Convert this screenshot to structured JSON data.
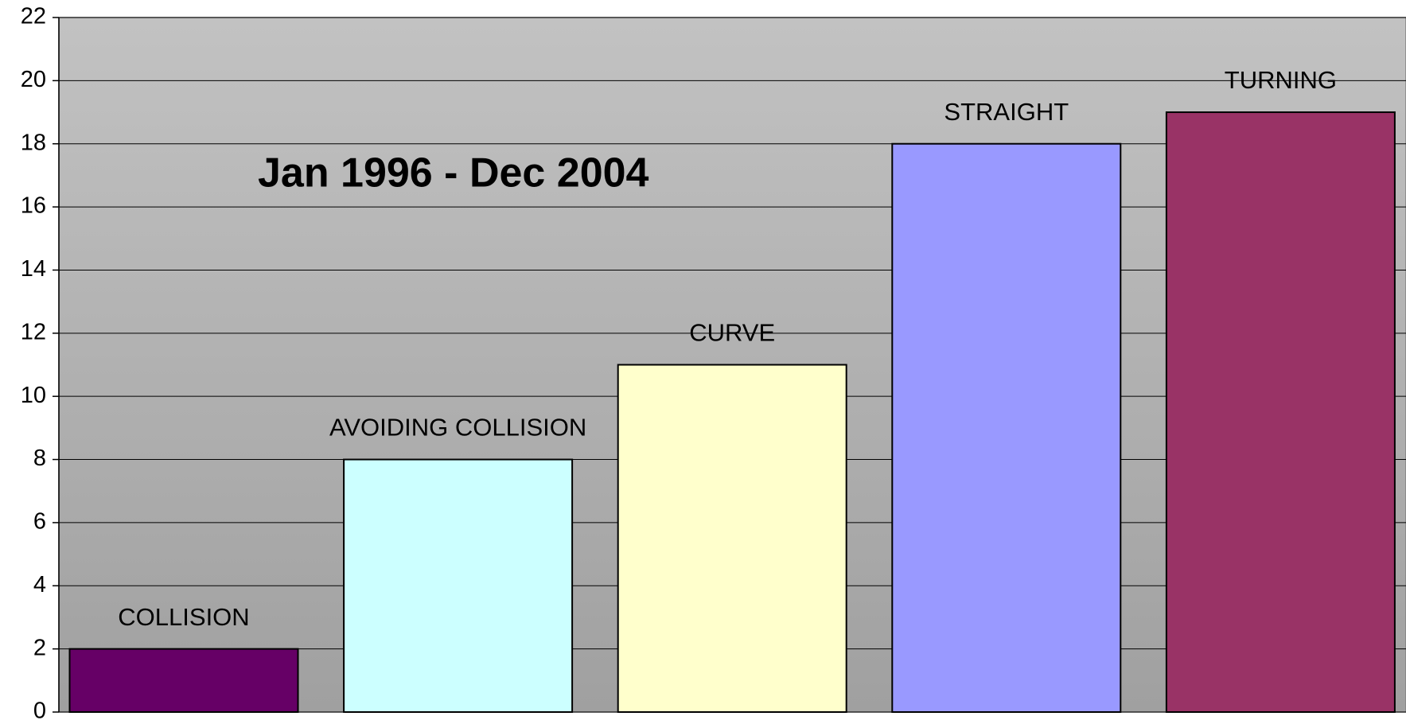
{
  "chart_data": {
    "type": "bar",
    "annotation": "Jan 1996 - Dec 2004",
    "categories": [
      "COLLISION",
      "AVOIDING COLLISION",
      "CURVE",
      "STRAIGHT",
      "TURNING"
    ],
    "values": [
      2,
      8,
      11,
      18,
      19
    ],
    "colors": [
      "#660066",
      "#ccffff",
      "#ffffcc",
      "#9999ff",
      "#993366"
    ],
    "ylim": [
      0,
      22
    ],
    "yticks": [
      0,
      2,
      4,
      6,
      8,
      10,
      12,
      14,
      16,
      18,
      20,
      22
    ],
    "grid": true
  }
}
